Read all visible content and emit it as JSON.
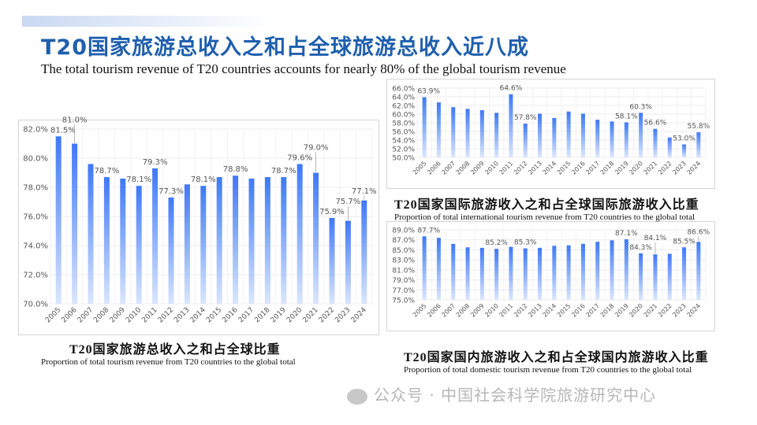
{
  "header": {
    "title": "T20国家旅游总收入之和占全球旅游总收入近八成",
    "subtitle": "The total tourism revenue of T20 countries accounts for nearly 80% of the global tourism revenue"
  },
  "watermark": "公众号 · 中国社会科学院旅游研究中心",
  "colors": {
    "bar_top": "#3f78f7",
    "bar_bottom": "#dbe6fd",
    "title": "#1f5fae"
  },
  "chart_data": [
    {
      "type": "bar",
      "title": "T20国家旅游总收入之和占全球比重",
      "subtitle": "Proportion of total tourism revenue from T20 countries to the global total",
      "categories": [
        "2005",
        "2006",
        "2007",
        "2008",
        "2009",
        "2010",
        "2011",
        "2012",
        "2013",
        "2014",
        "2015",
        "2016",
        "2017",
        "2018",
        "2019",
        "2020",
        "2021",
        "2022",
        "2023",
        "2024"
      ],
      "values": [
        81.5,
        81.0,
        79.6,
        78.7,
        78.6,
        78.1,
        79.3,
        77.3,
        78.2,
        78.1,
        78.7,
        78.8,
        78.6,
        78.7,
        78.7,
        79.6,
        79.0,
        75.9,
        75.7,
        77.1
      ],
      "labels": [
        "81.5%",
        "81.0%",
        null,
        "78.7%",
        null,
        "78.1%",
        "79.3%",
        "77.3%",
        null,
        "78.1%",
        null,
        "78.8%",
        null,
        null,
        "78.7%",
        "79.6%",
        "79.0%",
        "75.9%",
        "75.7%",
        "77.1%"
      ],
      "yticks": [
        "70.0%",
        "72.0%",
        "74.0%",
        "76.0%",
        "78.0%",
        "80.0%",
        "82.0%"
      ],
      "ylim": [
        70,
        82
      ],
      "grid": true
    },
    {
      "type": "bar",
      "title": "T20国家国际旅游收入之和占全球国际旅游收入比重",
      "subtitle": "Proportion of total international tourism revenue from T20 countries to the global total",
      "categories": [
        "2005",
        "2006",
        "2007",
        "2008",
        "2009",
        "2010",
        "2011",
        "2012",
        "2013",
        "2014",
        "2015",
        "2016",
        "2017",
        "2018",
        "2019",
        "2020",
        "2021",
        "2022",
        "2023",
        "2024"
      ],
      "values": [
        63.9,
        62.7,
        61.6,
        61.2,
        60.9,
        60.3,
        64.6,
        57.8,
        60.1,
        59.1,
        60.6,
        60.1,
        58.7,
        58.3,
        58.1,
        60.3,
        56.6,
        54.6,
        53.0,
        55.8
      ],
      "labels": [
        "63.9%",
        null,
        null,
        null,
        null,
        null,
        "64.6%",
        "57.8%",
        null,
        null,
        null,
        null,
        null,
        null,
        "58.1%",
        "60.3%",
        "56.6%",
        null,
        "53.0%",
        "55.8%"
      ],
      "yticks": [
        "50.0%",
        "52.0%",
        "54.0%",
        "56.0%",
        "58.0%",
        "60.0%",
        "62.0%",
        "64.0%",
        "66.0%"
      ],
      "ylim": [
        50,
        66
      ],
      "grid": true
    },
    {
      "type": "bar",
      "title": "T20国家国内旅游收入之和占全球国内旅游收入比重",
      "subtitle": "Proportion of total domestic tourism revenue from T20 countries to the global total",
      "categories": [
        "2005",
        "2006",
        "2007",
        "2008",
        "2009",
        "2010",
        "2011",
        "2012",
        "2013",
        "2014",
        "2015",
        "2016",
        "2017",
        "2018",
        "2019",
        "2020",
        "2021",
        "2022",
        "2023",
        "2024"
      ],
      "values": [
        87.7,
        87.4,
        86.2,
        85.5,
        85.4,
        85.2,
        85.6,
        85.3,
        85.4,
        85.8,
        85.9,
        86.2,
        86.6,
        86.9,
        87.1,
        84.3,
        84.1,
        84.2,
        85.5,
        86.6
      ],
      "labels": [
        "87.7%",
        null,
        null,
        null,
        null,
        "85.2%",
        null,
        "85.3%",
        null,
        null,
        null,
        null,
        null,
        null,
        "87.1%",
        "84.3%",
        "84.1%",
        null,
        "85.5%",
        "86.6%"
      ],
      "yticks": [
        "75.0%",
        "77.0%",
        "79.0%",
        "81.0%",
        "83.0%",
        "85.0%",
        "87.0%",
        "89.0%"
      ],
      "ylim": [
        75,
        89
      ],
      "grid": true
    }
  ]
}
